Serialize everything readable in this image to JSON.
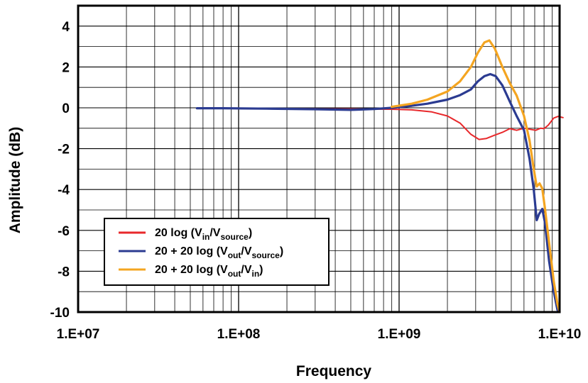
{
  "chart_data": {
    "type": "line",
    "xlabel": "Frequency",
    "ylabel": "Amplitude (dB)",
    "xscale": "log",
    "xlim": [
      10000000,
      10000000000
    ],
    "ylim": [
      -10,
      5
    ],
    "grid": true,
    "legend_position": "lower-left",
    "x_ticks": [
      {
        "value": 10000000,
        "label": "1.E+07"
      },
      {
        "value": 100000000,
        "label": "1.E+08"
      },
      {
        "value": 1000000000,
        "label": "1.E+09"
      },
      {
        "value": 10000000000,
        "label": "1.E+10"
      }
    ],
    "y_ticks": [
      {
        "value": 4,
        "label": "4"
      },
      {
        "value": 2,
        "label": "2"
      },
      {
        "value": 0,
        "label": "0"
      },
      {
        "value": -2,
        "label": "-2"
      },
      {
        "value": -4,
        "label": "-4"
      },
      {
        "value": -6,
        "label": "-6"
      },
      {
        "value": -8,
        "label": "-8"
      },
      {
        "value": -10,
        "label": "-10"
      }
    ],
    "series": [
      {
        "key": "vin_vsource",
        "legend": {
          "pre": "20 log (V",
          "s1": "in",
          "mid": "/V",
          "s2": "source",
          "post": ")"
        },
        "color": "#e8282b",
        "points": [
          [
            55000000,
            -0.02
          ],
          [
            80000000,
            -0.03
          ],
          [
            150000000,
            -0.04
          ],
          [
            300000000,
            -0.05
          ],
          [
            600000000,
            -0.06
          ],
          [
            900000000,
            -0.07
          ],
          [
            1200000000,
            -0.1
          ],
          [
            1600000000,
            -0.2
          ],
          [
            2000000000,
            -0.4
          ],
          [
            2400000000,
            -0.75
          ],
          [
            2800000000,
            -1.3
          ],
          [
            3150000000,
            -1.55
          ],
          [
            3500000000,
            -1.5
          ],
          [
            3900000000,
            -1.35
          ],
          [
            4400000000,
            -1.2
          ],
          [
            4900000000,
            -1.02
          ],
          [
            5400000000,
            -1.1
          ],
          [
            6000000000,
            -1.0
          ],
          [
            6500000000,
            -1.05
          ],
          [
            7100000000,
            -1.1
          ],
          [
            7600000000,
            -1.0
          ],
          [
            8000000000,
            -1.02
          ],
          [
            8500000000,
            -0.85
          ],
          [
            9200000000,
            -0.5
          ],
          [
            9800000000,
            -0.42
          ],
          [
            10500000000,
            -0.48
          ]
        ]
      },
      {
        "key": "vout_vsource",
        "legend": {
          "pre": "20 + 20 log (V",
          "s1": "out",
          "mid": "/V",
          "s2": "source",
          "post": ")"
        },
        "color": "#2b3b91",
        "points": [
          [
            55000000,
            -0.02
          ],
          [
            80000000,
            -0.02
          ],
          [
            150000000,
            -0.04
          ],
          [
            300000000,
            -0.07
          ],
          [
            500000000,
            -0.1
          ],
          [
            700000000,
            -0.06
          ],
          [
            900000000,
            0.0
          ],
          [
            1200000000,
            0.1
          ],
          [
            1500000000,
            0.2
          ],
          [
            2000000000,
            0.4
          ],
          [
            2400000000,
            0.62
          ],
          [
            2800000000,
            0.9
          ],
          [
            3100000000,
            1.3
          ],
          [
            3400000000,
            1.55
          ],
          [
            3700000000,
            1.65
          ],
          [
            4000000000,
            1.55
          ],
          [
            4400000000,
            1.1
          ],
          [
            4900000000,
            0.3
          ],
          [
            5400000000,
            -0.4
          ],
          [
            6000000000,
            -1.1
          ],
          [
            6500000000,
            -2.5
          ],
          [
            6900000000,
            -4.0
          ],
          [
            7200000000,
            -5.5
          ],
          [
            7450000000,
            -5.2
          ],
          [
            7800000000,
            -4.95
          ],
          [
            8100000000,
            -5.6
          ],
          [
            8600000000,
            -7.5
          ],
          [
            9200000000,
            -9.0
          ],
          [
            9700000000,
            -9.9
          ],
          [
            10000000000,
            -10.0
          ]
        ]
      },
      {
        "key": "vout_vin",
        "legend": {
          "pre": "20 + 20 log (V",
          "s1": "out",
          "mid": "/V",
          "s2": "in",
          "post": ")"
        },
        "color": "#f4a521",
        "points": [
          [
            900000000,
            0.05
          ],
          [
            1200000000,
            0.2
          ],
          [
            1500000000,
            0.4
          ],
          [
            2000000000,
            0.8
          ],
          [
            2400000000,
            1.3
          ],
          [
            2800000000,
            2.0
          ],
          [
            3100000000,
            2.7
          ],
          [
            3400000000,
            3.2
          ],
          [
            3650000000,
            3.3
          ],
          [
            3950000000,
            2.9
          ],
          [
            4400000000,
            2.0
          ],
          [
            4900000000,
            1.2
          ],
          [
            5400000000,
            0.6
          ],
          [
            6000000000,
            -0.4
          ],
          [
            6500000000,
            -1.6
          ],
          [
            6900000000,
            -3.0
          ],
          [
            7200000000,
            -3.85
          ],
          [
            7500000000,
            -3.7
          ],
          [
            7800000000,
            -3.95
          ],
          [
            8100000000,
            -4.9
          ],
          [
            8600000000,
            -6.6
          ],
          [
            9200000000,
            -8.5
          ],
          [
            9700000000,
            -9.6
          ],
          [
            10000000000,
            -10.0
          ]
        ]
      }
    ]
  }
}
